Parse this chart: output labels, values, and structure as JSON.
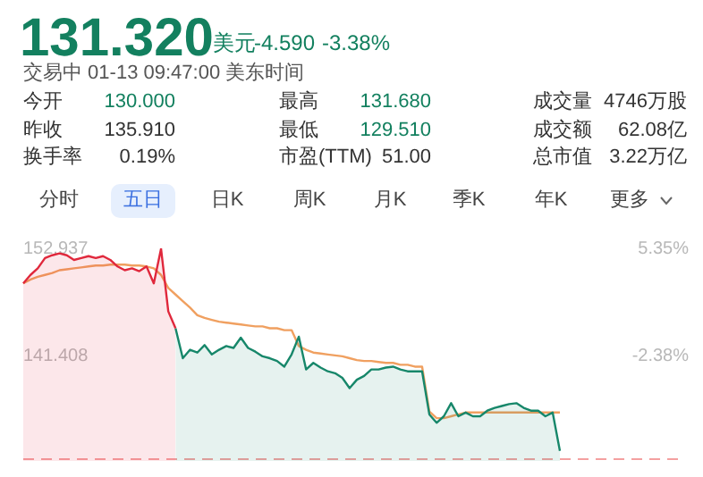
{
  "chart_data": {
    "type": "area",
    "title": "131.320",
    "subtitle": "交易中 01-13 09:47:00 美东时间",
    "annotations": [
      "美元",
      "-4.590",
      "-3.38%",
      "今开",
      "130.000",
      "最高",
      "131.680",
      "成交量",
      "4746万股",
      "昨收",
      "135.910",
      "最低",
      "129.510",
      "成交额",
      "62.08亿",
      "换手率",
      "0.19%",
      "市盈(TTM)",
      "51.00",
      "总市值",
      "3.22万亿",
      "分时",
      "五日",
      "日K",
      "周K",
      "月K",
      "季K",
      "年K",
      "更多"
    ],
    "categories": [
      null,
      null,
      null,
      null,
      null,
      null,
      null,
      null,
      null,
      null,
      null,
      null,
      null,
      null,
      null,
      null,
      null,
      null,
      null,
      null,
      null,
      null,
      null,
      null,
      null,
      null,
      null,
      null,
      null,
      null,
      null,
      null,
      null,
      null,
      null,
      null,
      null,
      null,
      null,
      null,
      null,
      null,
      null,
      null,
      null,
      null,
      null,
      null,
      null,
      null,
      null,
      null,
      null,
      null,
      null,
      null,
      null,
      null,
      null,
      null,
      null,
      null,
      null,
      null,
      null,
      null,
      null,
      null,
      null,
      null,
      null,
      null,
      null,
      null,
      null
    ],
    "series": [
      {
        "color": "#e0283c",
        "values": [
          149.2,
          150.1,
          150.8,
          151.9,
          152.2,
          152.4,
          152.2,
          151.7,
          151.9,
          152.1,
          151.9,
          152.1,
          151.7,
          151.0,
          150.6,
          150.8,
          150.5,
          151.0,
          149.2,
          152.9,
          146.2,
          144.4,
          null,
          null,
          null,
          null,
          null,
          null,
          null,
          null,
          null,
          null,
          null,
          null,
          null,
          null,
          null,
          null,
          null,
          null,
          null,
          null,
          null,
          null,
          null,
          null,
          null,
          null,
          null,
          null,
          null,
          null,
          null,
          null,
          null,
          null,
          null,
          null,
          null,
          null,
          null,
          null,
          null,
          null,
          null,
          null,
          null,
          null,
          null,
          null,
          null,
          null,
          null,
          null,
          null
        ]
      },
      {
        "color": "#17876a",
        "values": [
          null,
          null,
          null,
          null,
          null,
          null,
          null,
          null,
          null,
          null,
          null,
          null,
          null,
          null,
          null,
          null,
          null,
          null,
          null,
          null,
          null,
          144.4,
          141.2,
          142.1,
          141.8,
          142.6,
          141.6,
          142.1,
          142.5,
          142.3,
          143.4,
          142.3,
          141.9,
          141.4,
          141.2,
          140.9,
          140.3,
          141.6,
          143.5,
          140.0,
          140.7,
          140.2,
          139.8,
          139.6,
          139.1,
          138.0,
          138.9,
          139.3,
          140.0,
          140.0,
          140.2,
          140.3,
          140.0,
          139.8,
          139.8,
          139.8,
          135.2,
          134.3,
          135.0,
          136.4,
          135.0,
          135.4,
          135.0,
          135.0,
          135.6,
          135.9,
          136.1,
          136.3,
          136.4,
          135.9,
          135.6,
          135.6,
          135.0,
          135.4,
          131.3
        ]
      },
      {
        "type": "line",
        "color": "#f0a060",
        "values": [
          149.2,
          149.6,
          149.9,
          150.1,
          150.3,
          150.6,
          150.7,
          150.8,
          150.9,
          151.0,
          151.1,
          151.1,
          151.2,
          151.2,
          151.2,
          151.1,
          151.1,
          151.0,
          150.8,
          150.1,
          148.7,
          148.0,
          147.3,
          146.6,
          145.8,
          145.5,
          145.3,
          145.1,
          145.0,
          144.9,
          144.8,
          144.7,
          144.6,
          144.6,
          144.4,
          144.4,
          144.2,
          144.2,
          142.5,
          142.1,
          141.8,
          141.7,
          141.6,
          141.5,
          141.4,
          141.2,
          141.0,
          140.9,
          140.9,
          140.8,
          140.7,
          140.7,
          140.5,
          140.5,
          140.3,
          140.3,
          135.5,
          134.8,
          134.8,
          135.0,
          135.2,
          135.4,
          135.4,
          135.4,
          135.4,
          135.4,
          135.4,
          135.4,
          135.4,
          135.4,
          135.4,
          135.4,
          135.4,
          135.4,
          135.4
        ]
      }
    ],
    "ylim": [
      130.23,
      152.937
    ],
    "yticks": [
      152.937,
      141.408
    ],
    "y2lim": [
      -9.87,
      5.35
    ],
    "y2ticks": [
      {
        "value": 5.35,
        "label": "5.35%"
      },
      {
        "value": -2.38,
        "label": "-2.38%"
      }
    ],
    "ref_lines": [
      {
        "axis": "y",
        "value": 130.4,
        "color": "#f4a0a0",
        "line_style": "dashed"
      }
    ],
    "tick_labels": "y",
    "grid": false,
    "legend": false,
    "marker": "none",
    "line_style": "solid"
  }
}
